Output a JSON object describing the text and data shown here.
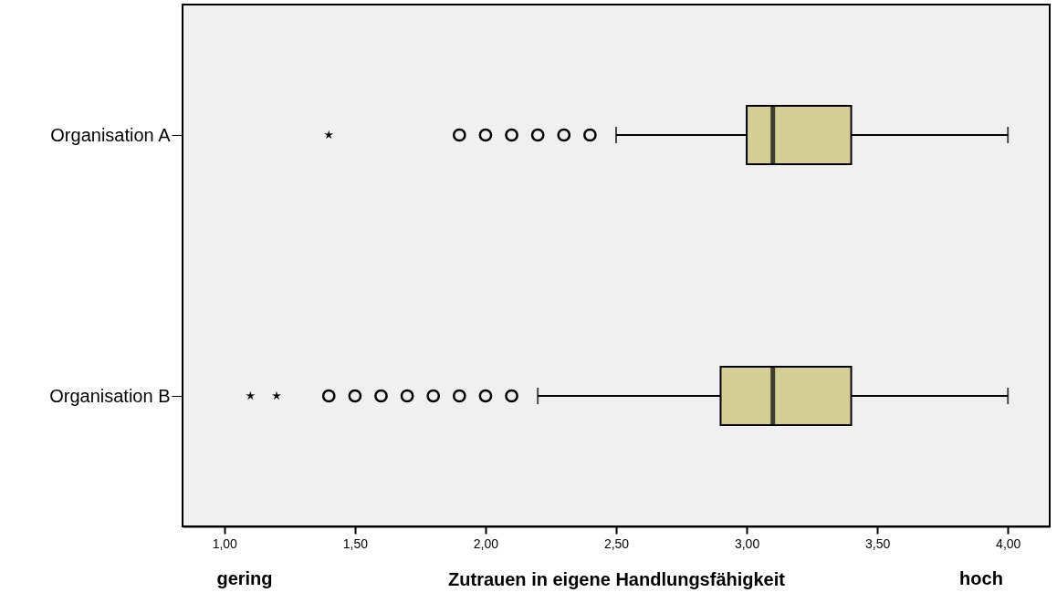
{
  "chart_data": {
    "type": "box",
    "orientation": "horizontal",
    "categories": [
      "Organisation A",
      "Organisation B"
    ],
    "xlabel": "Zutrauen in eigene Handlungsfähigkeit",
    "annotations": [
      "gering",
      "hoch"
    ],
    "xlim": [
      0.84,
      4.16
    ],
    "xticks": [
      {
        "value": 1,
        "label": "1,00"
      },
      {
        "value": 1.5,
        "label": "1,50"
      },
      {
        "value": 2,
        "label": "2,00"
      },
      {
        "value": 2.5,
        "label": "2,50"
      },
      {
        "value": 3,
        "label": "3,00"
      },
      {
        "value": 3.5,
        "label": "3,50"
      },
      {
        "value": 4,
        "label": "4,00"
      }
    ],
    "series": [
      {
        "color": "#d3cf96",
        "boxes": [
          {
            "low": 2.5,
            "q1": 3.0,
            "median": 3.1,
            "q3": 3.4,
            "high": 4.0,
            "outliers": [
              1.9,
              2.0,
              2.1,
              2.2,
              2.3,
              2.4
            ]
          },
          {
            "low": 2.2,
            "q1": 2.9,
            "median": 3.1,
            "q3": 3.4,
            "high": 4.0,
            "outliers": [
              1.4,
              1.5,
              1.6,
              1.7,
              1.8,
              1.9,
              2.0,
              2.1
            ]
          }
        ]
      },
      {
        "type": "scatter",
        "marker": "star",
        "color": "#000000",
        "x": [
          "Organisation A",
          "Organisation B",
          "Organisation B"
        ],
        "values": [
          1.4,
          1.1,
          1.2
        ]
      }
    ]
  }
}
